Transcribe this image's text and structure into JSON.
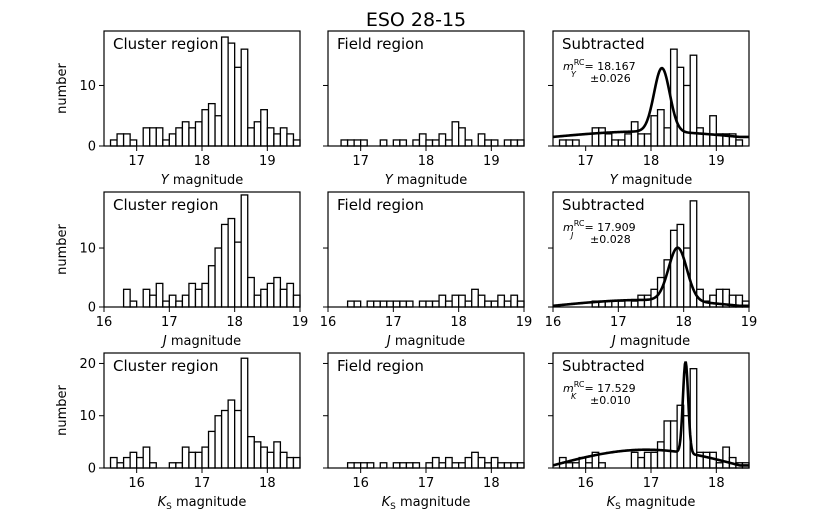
{
  "figure": {
    "title": "ESO 28-15",
    "rows": [
      {
        "band_axis": "Y",
        "y_label": "number",
        "x_label_tex": "Y",
        "x_label_suffix": " magnitude",
        "ylim": [
          0,
          19
        ],
        "y_ticks": [
          0,
          10
        ],
        "xlim": [
          16.5,
          19.5
        ],
        "x_ticks": [
          17,
          18,
          19
        ],
        "x_tick_labels": [
          "17",
          "18",
          "19"
        ],
        "y_tick_labels": [
          "0",
          "10"
        ]
      },
      {
        "band_axis": "J",
        "y_label": "number",
        "x_label_tex": "J",
        "x_label_suffix": " magnitude",
        "ylim": [
          0,
          19.5
        ],
        "y_ticks": [
          0,
          10
        ],
        "xlim": [
          16,
          19
        ],
        "x_ticks": [
          16,
          17,
          18,
          19
        ],
        "x_tick_labels": [
          "16",
          "17",
          "18",
          "19"
        ],
        "y_tick_labels": [
          "0",
          "10"
        ]
      },
      {
        "band_axis": "KS",
        "y_label": "number",
        "x_label_tex": "K",
        "x_label_sub": "S",
        "x_label_suffix": " magnitude",
        "ylim": [
          0,
          22
        ],
        "y_ticks": [
          0,
          10,
          20
        ],
        "xlim": [
          15.5,
          18.5
        ],
        "x_ticks": [
          16,
          17,
          18
        ],
        "x_tick_labels": [
          "16",
          "17",
          "18"
        ],
        "y_tick_labels": [
          "0",
          "10",
          "20"
        ]
      }
    ],
    "columns": [
      "Cluster region",
      "Field region",
      "Subtracted"
    ],
    "annotations": [
      {
        "m_label": "m",
        "band_sub": "Y",
        "sup": "RC",
        "value": "= 18.167",
        "err": "±0.026"
      },
      {
        "m_label": "m",
        "band_sub": "J",
        "sup": "RC",
        "value": "= 17.909",
        "err": "±0.028"
      },
      {
        "m_label": "m",
        "band_sub": "K",
        "sup": "RC",
        "value": "= 17.529",
        "err": "±0.010"
      }
    ]
  },
  "chart_data": {
    "type": "bar",
    "title": "ESO 28-15",
    "bin_width": 0.1,
    "panels": [
      {
        "row": 0,
        "col": 0,
        "label": "Cluster region",
        "bins_start": 16.6,
        "values": [
          1,
          2,
          2,
          1,
          0,
          3,
          3,
          3,
          1,
          2,
          3,
          4,
          3,
          4,
          6,
          7,
          5,
          18,
          17,
          13,
          16,
          3,
          4,
          6,
          3,
          2,
          3,
          2,
          1,
          3
        ]
      },
      {
        "row": 0,
        "col": 1,
        "label": "Field region",
        "bins_start": 16.6,
        "values": [
          0,
          1,
          1,
          1,
          1,
          0,
          0,
          1,
          0,
          1,
          1,
          0,
          1,
          2,
          1,
          1,
          2,
          1,
          4,
          3,
          1,
          0,
          2,
          1,
          1,
          0,
          1,
          1,
          1,
          1
        ]
      },
      {
        "row": 0,
        "col": 2,
        "label": "Subtracted",
        "bins_start": 16.6,
        "values": [
          1,
          1,
          1,
          0,
          0,
          3,
          3,
          2,
          1,
          1,
          2,
          4,
          2,
          2,
          5,
          6,
          3,
          16,
          13,
          10,
          15,
          3,
          2,
          5,
          2,
          2,
          2,
          1,
          0,
          2
        ],
        "fit": {
          "peak": 18.167,
          "sigma": 0.12,
          "amp": 10.5,
          "bg_a": 1.5,
          "bg_b": 0.9
        }
      },
      {
        "row": 1,
        "col": 0,
        "label": "Cluster region",
        "bins_start": 16.2,
        "values": [
          0,
          3,
          1,
          0,
          3,
          2,
          4,
          1,
          2,
          1,
          2,
          4,
          3,
          4,
          7,
          10,
          14,
          15,
          11,
          19,
          5,
          2,
          3,
          4,
          5,
          3,
          4,
          2,
          2,
          0
        ]
      },
      {
        "row": 1,
        "col": 1,
        "label": "Field region",
        "bins_start": 16.2,
        "values": [
          0,
          1,
          1,
          0,
          1,
          1,
          1,
          1,
          1,
          1,
          1,
          0,
          1,
          1,
          1,
          2,
          1,
          2,
          2,
          1,
          3,
          2,
          1,
          1,
          2,
          1,
          2,
          1,
          1,
          0
        ]
      },
      {
        "row": 1,
        "col": 2,
        "label": "Subtracted",
        "bins_start": 16.2,
        "values": [
          0,
          0,
          0,
          0,
          1,
          1,
          1,
          0,
          1,
          0,
          1,
          2,
          2,
          3,
          5,
          8,
          13,
          14,
          10,
          18,
          3,
          1,
          2,
          3,
          3,
          2,
          2,
          1,
          0,
          0
        ],
        "fit": {
          "peak": 17.909,
          "sigma": 0.14,
          "amp": 9.0,
          "bg_a": 0.2,
          "bg_b": 1.0
        }
      },
      {
        "row": 2,
        "col": 0,
        "label": "Cluster region",
        "bins_start": 15.6,
        "values": [
          2,
          1,
          2,
          3,
          2,
          4,
          1,
          0,
          0,
          1,
          1,
          4,
          3,
          3,
          4,
          7,
          10,
          11,
          13,
          11,
          21,
          6,
          5,
          4,
          3,
          5,
          3,
          2,
          2,
          4
        ]
      },
      {
        "row": 2,
        "col": 1,
        "label": "Field region",
        "bins_start": 15.6,
        "values": [
          0,
          0,
          1,
          1,
          1,
          1,
          0,
          1,
          0,
          1,
          1,
          1,
          1,
          0,
          1,
          2,
          1,
          2,
          1,
          1,
          2,
          3,
          2,
          1,
          2,
          1,
          1,
          1,
          1,
          1
        ]
      },
      {
        "row": 2,
        "col": 2,
        "label": "Subtracted",
        "bins_start": 15.6,
        "values": [
          2,
          1,
          1,
          2,
          1,
          3,
          1,
          0,
          0,
          0,
          0,
          3,
          2,
          3,
          3,
          5,
          9,
          9,
          12,
          10,
          19,
          3,
          3,
          3,
          1,
          4,
          2,
          1,
          1,
          3
        ],
        "fit": {
          "peak": 17.529,
          "sigma": 0.04,
          "amp": 17.5,
          "bg_a": 0.5,
          "bg_b": 3.0
        }
      }
    ]
  }
}
